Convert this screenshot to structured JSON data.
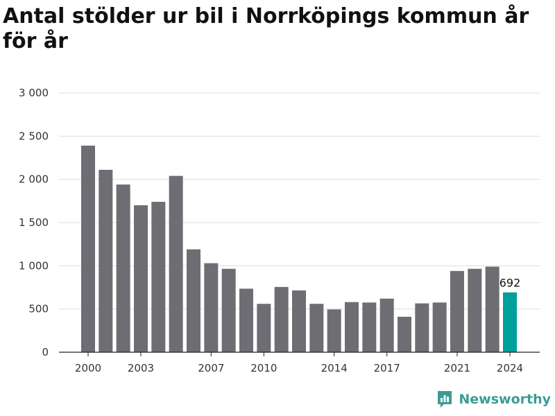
{
  "title": "Antal stölder ur bil i Norrköpings kommun år för år",
  "brand": {
    "name": "Newsworthy"
  },
  "colors": {
    "bar": "#6e6d73",
    "highlight": "#00a09a",
    "grid": "#dddddd",
    "axis": "#222222",
    "brand": "#3a9d95"
  },
  "chart_data": {
    "type": "bar",
    "x": [
      2000,
      2001,
      2002,
      2003,
      2004,
      2005,
      2006,
      2007,
      2008,
      2009,
      2010,
      2011,
      2012,
      2013,
      2014,
      2015,
      2016,
      2017,
      2018,
      2019,
      2020,
      2021,
      2022,
      2023,
      2024
    ],
    "values": [
      2390,
      2110,
      1940,
      1700,
      1740,
      2040,
      1190,
      1030,
      965,
      735,
      560,
      755,
      715,
      560,
      495,
      580,
      575,
      620,
      410,
      565,
      575,
      940,
      965,
      990,
      692
    ],
    "x_tick_labels": [
      "2000",
      "2003",
      "2007",
      "2010",
      "2014",
      "2017",
      "2021",
      "2024"
    ],
    "y_ticks": [
      0,
      500,
      1000,
      1500,
      2000,
      2500,
      3000
    ],
    "y_tick_labels": [
      "0",
      "500",
      "1 000",
      "1 500",
      "2 000",
      "2 500",
      "3 000"
    ],
    "ylim": [
      0,
      3000
    ],
    "highlight_index": 24,
    "highlight_label": "692",
    "grid": true,
    "legend": "none"
  }
}
